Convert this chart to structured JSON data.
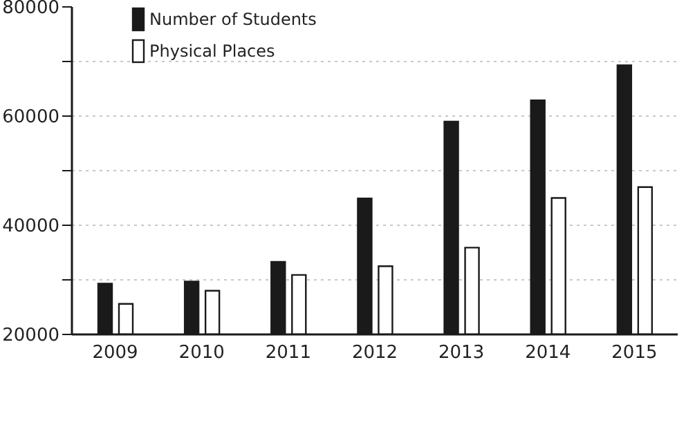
{
  "chart_data": {
    "type": "bar",
    "categories": [
      "2009",
      "2010",
      "2011",
      "2012",
      "2013",
      "2014",
      "2015"
    ],
    "series": [
      {
        "name": "Number of Students",
        "color": "#1a1a1a",
        "values": [
          29300,
          29700,
          33300,
          44900,
          59000,
          62900,
          69300
        ]
      },
      {
        "name": "Physical Places",
        "color": "#ffffff",
        "values": [
          25600,
          28000,
          30900,
          32500,
          35900,
          45000,
          47000
        ]
      }
    ],
    "ylim": [
      20000,
      80000
    ],
    "yticks": [
      20000,
      {
        "value": 30000,
        "label": null
      },
      40000,
      {
        "value": 50000,
        "label": null
      },
      60000,
      {
        "value": 70000,
        "label": null
      },
      80000
    ],
    "grid": "y",
    "legend": "top left"
  }
}
